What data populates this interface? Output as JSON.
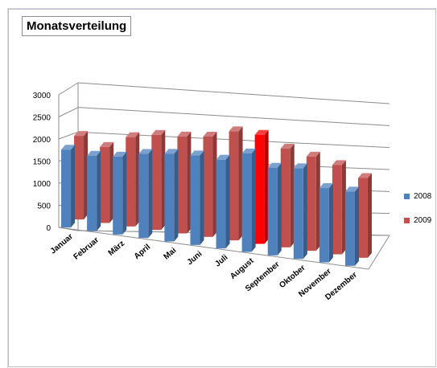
{
  "chart_data": {
    "type": "bar",
    "title": "Monatsverteilung",
    "categories": [
      "Januar",
      "Februar",
      "März",
      "April",
      "Mai",
      "Juni",
      "Juli",
      "August",
      "September",
      "Oktober",
      "November",
      "Dezember"
    ],
    "series": [
      {
        "name": "2008",
        "values": [
          2150,
          2080,
          2150,
          2320,
          2420,
          2470,
          2450,
          2720,
          2420,
          2500,
          2050,
          2050
        ],
        "color": "#4f81bd"
      },
      {
        "name": "2009",
        "values": [
          2200,
          2000,
          2350,
          2500,
          2550,
          2640,
          2870,
          2870,
          2600,
          2480,
          2350,
          2100
        ],
        "color": "#c0504d"
      }
    ],
    "highlight": {
      "series": "2009",
      "category": "August",
      "color": "#ff0000"
    },
    "yticks": [
      "0",
      "500",
      "1000",
      "1500",
      "2000",
      "2500",
      "3000"
    ],
    "ylim": [
      0,
      3000
    ],
    "grid": true,
    "legend_position": "right",
    "style": "3d-clustered-column"
  }
}
